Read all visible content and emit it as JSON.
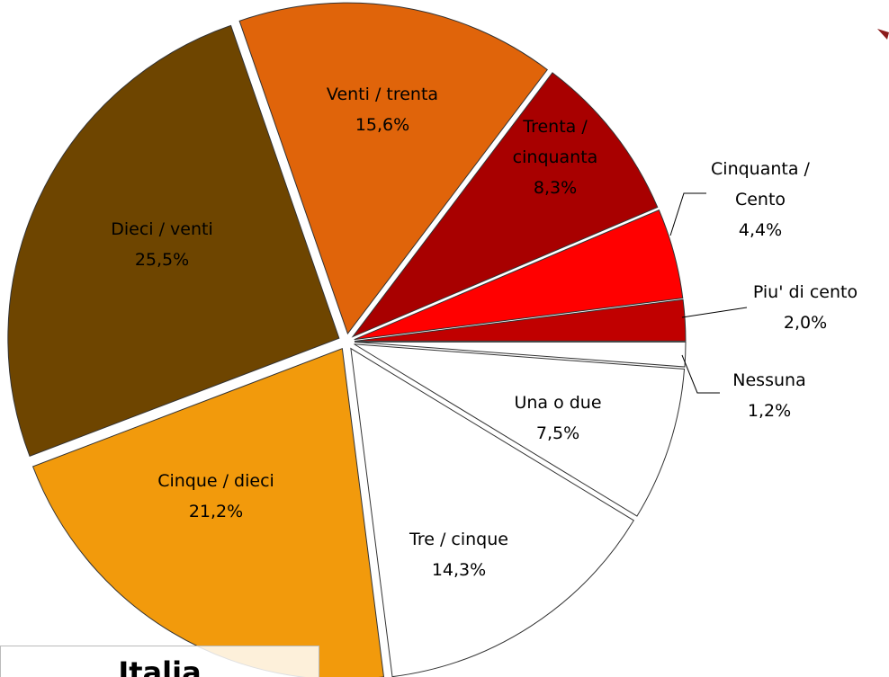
{
  "chart_data": {
    "type": "pie",
    "title": "Italia",
    "categories": [
      "Nessuna",
      "Una o due",
      "Tre / cinque",
      "Cinque / dieci",
      "Dieci / venti",
      "Venti / trenta",
      "Trenta / cinquanta",
      "Cinquanta / Cento",
      "Piu' di cento"
    ],
    "values": [
      1.2,
      7.5,
      14.3,
      21.2,
      25.5,
      15.6,
      8.3,
      4.4,
      2.0
    ],
    "value_labels": [
      "1,2%",
      "7,5%",
      "14,3%",
      "21,2%",
      "25,5%",
      "15,6%",
      "8,3%",
      "4,4%",
      "2,0%"
    ],
    "colors": [
      "#ffffff",
      "#ffffff",
      "#ffffff",
      "#f29a0c",
      "#6e4500",
      "#e0640a",
      "#a80000",
      "#ff0000",
      "#c00000"
    ]
  }
}
